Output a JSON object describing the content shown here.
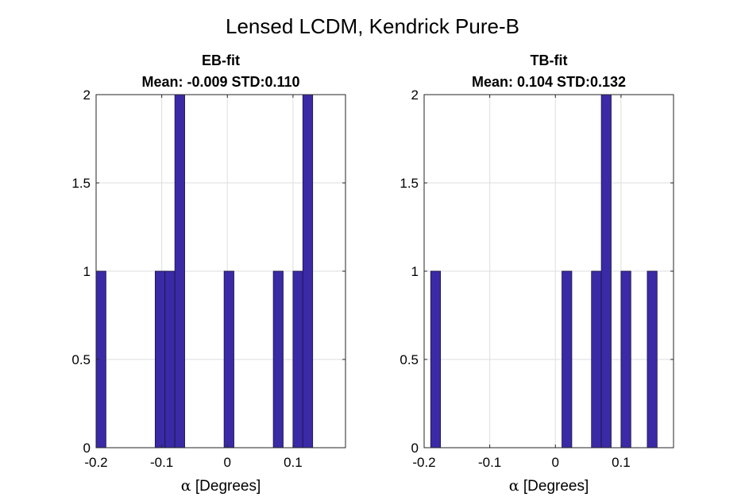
{
  "figure": {
    "title": "Lensed LCDM, Kendrick Pure-B"
  },
  "colors": {
    "bar_fill": "#3a2aa6",
    "bar_edge": "#1a1440",
    "grid": "#dedede",
    "axis": "#262626"
  },
  "chart_data": [
    {
      "type": "bar",
      "title_line1": "EB-fit",
      "title_line2": "Mean: -0.009 STD:0.110",
      "xlabel_symbol": "α",
      "xlabel": " [Degrees]",
      "xlim": [
        -0.2,
        0.18
      ],
      "ylim": [
        0,
        2
      ],
      "xticks": [
        -0.2,
        -0.1,
        0,
        0.1
      ],
      "xtick_labels": [
        "-0.2",
        "-0.1",
        "0",
        "0.1"
      ],
      "yticks": [
        0,
        0.5,
        1,
        1.5,
        2
      ],
      "ytick_labels": [
        "0",
        "0.5",
        "1",
        "1.5",
        "2"
      ],
      "grid": true,
      "bin_width": 0.015,
      "bins": [
        {
          "start": -0.2,
          "count": 1
        },
        {
          "start": -0.11,
          "count": 1
        },
        {
          "start": -0.095,
          "count": 1
        },
        {
          "start": -0.08,
          "count": 2
        },
        {
          "start": -0.005,
          "count": 1
        },
        {
          "start": 0.07,
          "count": 1
        },
        {
          "start": 0.1,
          "count": 1
        },
        {
          "start": 0.115,
          "count": 2
        }
      ]
    },
    {
      "type": "bar",
      "title_line1": "TB-fit",
      "title_line2": "Mean: 0.104 STD:0.132",
      "xlabel_symbol": "α",
      "xlabel": " [Degrees]",
      "xlim": [
        -0.2,
        0.18
      ],
      "ylim": [
        0,
        2
      ],
      "xticks": [
        -0.2,
        -0.1,
        0,
        0.1
      ],
      "xtick_labels": [
        "-0.2",
        "-0.1",
        "0",
        "0.1"
      ],
      "yticks": [
        0,
        0.5,
        1,
        1.5,
        2
      ],
      "ytick_labels": [
        "0",
        "0.5",
        "1",
        "1.5",
        "2"
      ],
      "grid": true,
      "bin_width": 0.015,
      "bins": [
        {
          "start": -0.19,
          "count": 1
        },
        {
          "start": 0.01,
          "count": 1
        },
        {
          "start": 0.055,
          "count": 1
        },
        {
          "start": 0.07,
          "count": 2
        },
        {
          "start": 0.1,
          "count": 1
        },
        {
          "start": 0.14,
          "count": 1
        }
      ]
    }
  ]
}
